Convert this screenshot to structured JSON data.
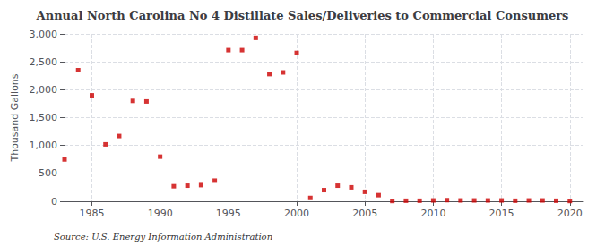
{
  "chart_data": {
    "type": "scatter",
    "title": "Annual North Carolina No 4 Distillate Sales/Deliveries to Commercial Consumers",
    "ylabel": "Thousand Gallons",
    "source": "Source: U.S. Energy Information Administration",
    "x": [
      1983,
      1984,
      1985,
      1986,
      1987,
      1988,
      1989,
      1990,
      1991,
      1992,
      1993,
      1994,
      1995,
      1996,
      1997,
      1998,
      1999,
      2000,
      2001,
      2002,
      2003,
      2004,
      2005,
      2006,
      2007,
      2008,
      2009,
      2010,
      2011,
      2012,
      2013,
      2014,
      2015,
      2016,
      2017,
      2018,
      2019,
      2020
    ],
    "values": [
      750,
      2350,
      1900,
      1020,
      1170,
      1800,
      1790,
      800,
      270,
      280,
      290,
      370,
      2710,
      2710,
      2930,
      2280,
      2310,
      2660,
      60,
      200,
      280,
      250,
      170,
      110,
      5,
      10,
      10,
      15,
      20,
      15,
      15,
      15,
      15,
      10,
      15,
      15,
      10,
      5
    ],
    "color": "#cc0000",
    "marker": "square",
    "xlim": [
      1983,
      2021
    ],
    "xticks": [
      1985,
      1990,
      1995,
      2000,
      2005,
      2010,
      2015,
      2020
    ],
    "ylim": [
      0,
      3000
    ],
    "yticks": [
      0,
      500,
      {
        "value": 1000,
        "label": "1,000"
      },
      {
        "value": 1500,
        "label": "1,500"
      },
      {
        "value": 2000,
        "label": "2,000"
      },
      {
        "value": 2500,
        "label": "2,500"
      },
      {
        "value": 3000,
        "label": "3,000"
      }
    ],
    "grid": true
  }
}
